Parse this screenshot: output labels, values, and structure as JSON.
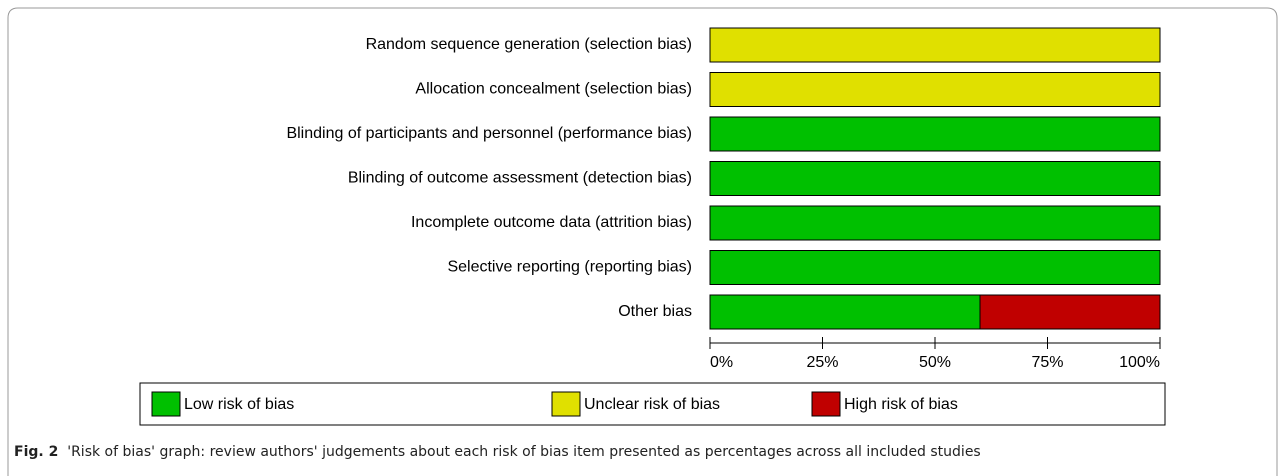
{
  "chart_data": {
    "type": "stacked-bar-horizontal",
    "categories": [
      "Random sequence generation (selection bias)",
      "Allocation concealment (selection bias)",
      "Blinding of participants and personnel (performance bias)",
      "Blinding of outcome assessment (detection bias)",
      "Incomplete outcome data (attrition bias)",
      "Selective reporting (reporting bias)",
      "Other bias"
    ],
    "series": [
      {
        "name": "Low risk of bias",
        "color": "#00c000",
        "values": [
          0,
          0,
          100,
          100,
          100,
          100,
          60
        ]
      },
      {
        "name": "Unclear risk of bias",
        "color": "#e0e000",
        "values": [
          100,
          100,
          0,
          0,
          0,
          0,
          0
        ]
      },
      {
        "name": "High risk of bias",
        "color": "#c00000",
        "values": [
          0,
          0,
          0,
          0,
          0,
          0,
          40
        ]
      }
    ],
    "xlim": [
      0,
      100
    ],
    "xticks": [
      {
        "value": 0,
        "label": "0%"
      },
      {
        "value": 25,
        "label": "25%"
      },
      {
        "value": 50,
        "label": "50%"
      },
      {
        "value": 75,
        "label": "75%"
      },
      {
        "value": 100,
        "label": "100%"
      }
    ],
    "caption_label": "Fig. 2",
    "caption": "'Risk of bias' graph: review authors' judgements about each risk of bias item presented as percentages across all included studies"
  }
}
